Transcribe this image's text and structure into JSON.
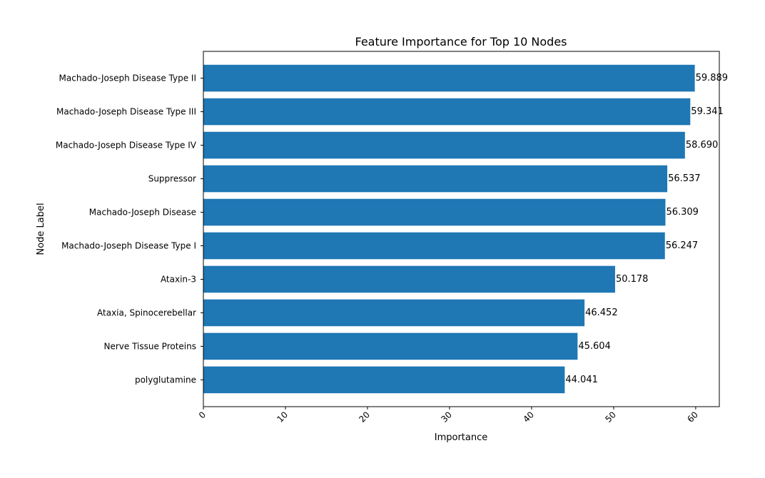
{
  "chart_data": {
    "type": "bar",
    "orientation": "horizontal",
    "title": "Feature Importance for Top 10 Nodes",
    "xlabel": "Importance",
    "ylabel": "Node Label",
    "xlim": [
      0,
      62.88
    ],
    "xticks": [
      0,
      10,
      20,
      30,
      40,
      50,
      60
    ],
    "xtick_rotation": -45,
    "grid": false,
    "bar_color": "#1f77b4",
    "categories": [
      "Machado-Joseph Disease Type II",
      "Machado-Joseph Disease Type III",
      "Machado-Joseph Disease Type IV",
      "Suppressor",
      "Machado-Joseph Disease",
      "Machado-Joseph Disease Type I",
      "Ataxin-3",
      "Ataxia, Spinocerebellar",
      "Nerve Tissue Proteins",
      "polyglutamine"
    ],
    "values": [
      59.889,
      59.341,
      58.69,
      56.537,
      56.309,
      56.247,
      50.178,
      46.452,
      45.604,
      44.041
    ],
    "data_labels": [
      "59.889",
      "59.341",
      "58.690",
      "56.537",
      "56.309",
      "56.247",
      "50.178",
      "46.452",
      "45.604",
      "44.041"
    ]
  }
}
